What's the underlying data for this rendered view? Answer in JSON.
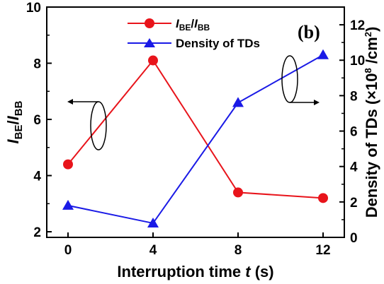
{
  "chart_data": {
    "type": "line",
    "panel_label": "(b)",
    "x": [
      0,
      4,
      8,
      12
    ],
    "x_ticks": [
      "0",
      "4",
      "8",
      "12"
    ],
    "xlabel": {
      "main": "Interruption time ",
      "var": "t",
      "unit": " (s)"
    },
    "xlim": [
      -1,
      13
    ],
    "left_axis": {
      "ylim": [
        1.8,
        10
      ],
      "ticks": [
        "2",
        "4",
        "6",
        "8",
        "10"
      ],
      "label": {
        "i1": "I",
        "s1": "BE",
        "slash": "/",
        "i2": "I",
        "s2": "BB"
      }
    },
    "right_axis": {
      "ylim": [
        0,
        13
      ],
      "ticks": [
        "0",
        "2",
        "4",
        "6",
        "8",
        "10",
        "12"
      ],
      "label": {
        "main": "Density of TDs (×10",
        "sup1": "8",
        "mid": " /cm",
        "sup2": "2",
        "end": ")"
      }
    },
    "series": [
      {
        "name": {
          "i1": "I",
          "s1": "BE",
          "slash": "/",
          "i2": "I",
          "s2": "BB"
        },
        "axis": "left",
        "marker": "circle",
        "color": "#e8141b",
        "values": [
          4.4,
          8.1,
          3.4,
          3.2
        ]
      },
      {
        "name": "Density of TDs",
        "axis": "right",
        "marker": "triangle",
        "color": "#1a1ae6",
        "values": [
          1.8,
          0.8,
          7.6,
          10.3
        ]
      }
    ],
    "legend_position": "top-center",
    "grid": false
  }
}
